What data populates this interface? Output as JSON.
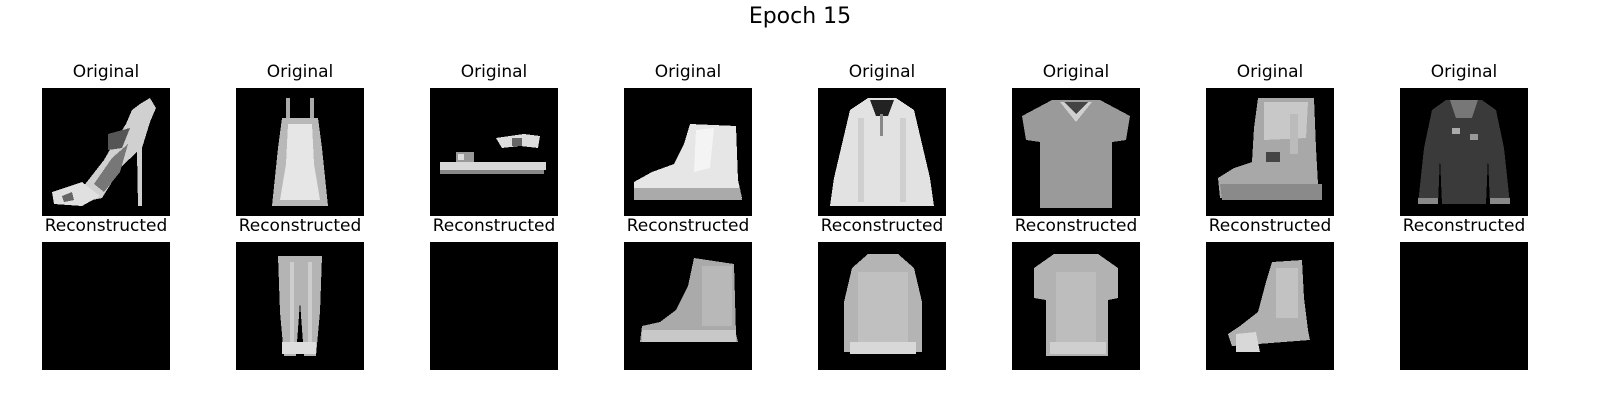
{
  "figure": {
    "title": "Epoch 15"
  },
  "rows": [
    {
      "label": "Original",
      "items": [
        {
          "icon": "sandal-icon"
        },
        {
          "icon": "dress-icon"
        },
        {
          "icon": "sandal-icon"
        },
        {
          "icon": "ankle-boot-icon"
        },
        {
          "icon": "shirt-icon"
        },
        {
          "icon": "tshirt-icon"
        },
        {
          "icon": "ankle-boot-icon"
        },
        {
          "icon": "coat-icon"
        }
      ]
    },
    {
      "label": "Reconstructed",
      "items": [
        {
          "icon": "blank-icon"
        },
        {
          "icon": "trouser-icon"
        },
        {
          "icon": "blank-icon"
        },
        {
          "icon": "ankle-boot-icon"
        },
        {
          "icon": "shirt-icon"
        },
        {
          "icon": "tshirt-icon"
        },
        {
          "icon": "ankle-boot-icon"
        },
        {
          "icon": "blank-icon"
        }
      ]
    }
  ],
  "colors": {
    "panel_background": "#000000",
    "title_text": "#000000"
  }
}
